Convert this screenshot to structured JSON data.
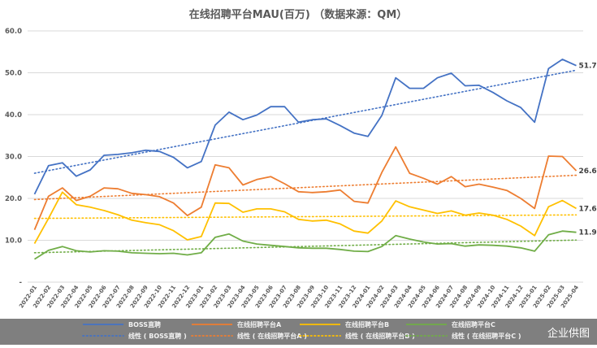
{
  "chart_data": {
    "type": "line",
    "title": "在线招聘平台MAU(百万) （数据来源：QM）",
    "y_ticks": [
      "-",
      "10.0",
      "20.0",
      "30.0",
      "40.0",
      "50.0",
      "60.0"
    ],
    "ylim": [
      0,
      60
    ],
    "grid": "horizontal",
    "legend_position": "bottom",
    "categories": [
      "2022-01",
      "2022-02",
      "2022-03",
      "2022-04",
      "2022-05",
      "2022-06",
      "2022-07",
      "2022-08",
      "2022-09",
      "2022-10",
      "2022-11",
      "2022-12",
      "2023-01",
      "2023-02",
      "2023-03",
      "2023-04",
      "2023-05",
      "2023-06",
      "2023-07",
      "2023-08",
      "2023-09",
      "2023-10",
      "2023-11",
      "2023-12",
      "2024-01",
      "2024-02",
      "2024-03",
      "2024-04",
      "2024-05",
      "2024-06",
      "2024-07",
      "2024-08",
      "2024-09",
      "2024-10",
      "2024-11",
      "2024-12",
      "2025-01",
      "2025-02",
      "2025-03",
      "2025-04"
    ],
    "series": [
      {
        "name": "BOSS直聘",
        "color": "#4472c4",
        "end_label": "51.7",
        "values": [
          21.0,
          27.8,
          28.5,
          25.3,
          26.8,
          30.3,
          30.5,
          30.9,
          31.5,
          31.2,
          29.8,
          27.3,
          28.8,
          37.5,
          40.6,
          38.8,
          39.9,
          41.9,
          41.9,
          38.2,
          38.8,
          39.0,
          37.4,
          35.6,
          34.8,
          39.8,
          48.8,
          46.3,
          46.3,
          48.8,
          49.9,
          46.9,
          47.0,
          45.3,
          43.3,
          41.7,
          38.2,
          51.0,
          53.2,
          51.7
        ]
      },
      {
        "name": "在线招聘平台A",
        "color": "#ed7d31",
        "end_label": "26.6",
        "values": [
          12.5,
          20.5,
          22.5,
          19.5,
          20.5,
          22.5,
          22.3,
          21.2,
          20.9,
          20.4,
          18.9,
          15.9,
          17.9,
          28.0,
          27.3,
          23.2,
          24.5,
          25.2,
          23.5,
          21.6,
          21.4,
          21.6,
          22.0,
          19.3,
          18.9,
          26.2,
          32.3,
          26.0,
          24.8,
          23.4,
          25.2,
          22.8,
          23.4,
          22.7,
          21.9,
          20.0,
          17.6,
          30.1,
          30.0,
          26.6
        ]
      },
      {
        "name": "在线招聘平台B",
        "color": "#ffc000",
        "end_label": "17.6",
        "values": [
          9.2,
          15.2,
          21.5,
          18.5,
          17.9,
          17.1,
          16.1,
          14.8,
          14.2,
          13.7,
          12.3,
          10.1,
          10.9,
          18.9,
          18.8,
          16.7,
          17.5,
          17.5,
          16.8,
          15.0,
          14.6,
          14.8,
          13.9,
          12.2,
          11.7,
          14.6,
          19.4,
          18.0,
          17.2,
          16.4,
          17.0,
          16.0,
          16.5,
          16.0,
          15.0,
          13.4,
          11.1,
          18.0,
          19.5,
          17.6
        ]
      },
      {
        "name": "在线招聘平台C",
        "color": "#70ad47",
        "end_label": "11.9",
        "values": [
          5.5,
          7.6,
          8.5,
          7.5,
          7.2,
          7.5,
          7.4,
          7.0,
          6.9,
          6.8,
          6.9,
          6.5,
          7.0,
          10.7,
          11.5,
          9.8,
          9.1,
          8.8,
          8.5,
          8.2,
          8.1,
          8.1,
          7.8,
          7.4,
          7.3,
          8.5,
          11.1,
          10.3,
          9.6,
          9.1,
          9.2,
          8.6,
          8.9,
          8.8,
          8.6,
          8.2,
          7.4,
          11.3,
          12.2,
          11.9
        ]
      }
    ],
    "trendlines": [
      {
        "name": "线性（BOSS直聘）",
        "series": "BOSS直聘",
        "color": "#4472c4"
      },
      {
        "name": "线性（在线招聘平台A）",
        "series": "在线招聘平台A",
        "color": "#ed7d31"
      },
      {
        "name": "线性（在线招聘平台B）",
        "series": "在线招聘平台B",
        "color": "#ffc000"
      },
      {
        "name": "线性（在线招聘平台C）",
        "series": "在线招聘平台C",
        "color": "#70ad47"
      }
    ]
  },
  "legend": {
    "rows": [
      [
        "BOSS直聘",
        "在线招聘平台A",
        "在线招聘平台B",
        "在线招聘平台C"
      ],
      [
        "线性 ( BOSS直聘 )",
        "线性 ( 在线招聘平台A )",
        "线性 ( 在线招聘平台B )",
        "线性 ( 在线招聘平台C )"
      ]
    ]
  },
  "legend_bg_color": "#7f7f7f",
  "grid_color": "#d9d9d9",
  "watermark": "企业供图"
}
